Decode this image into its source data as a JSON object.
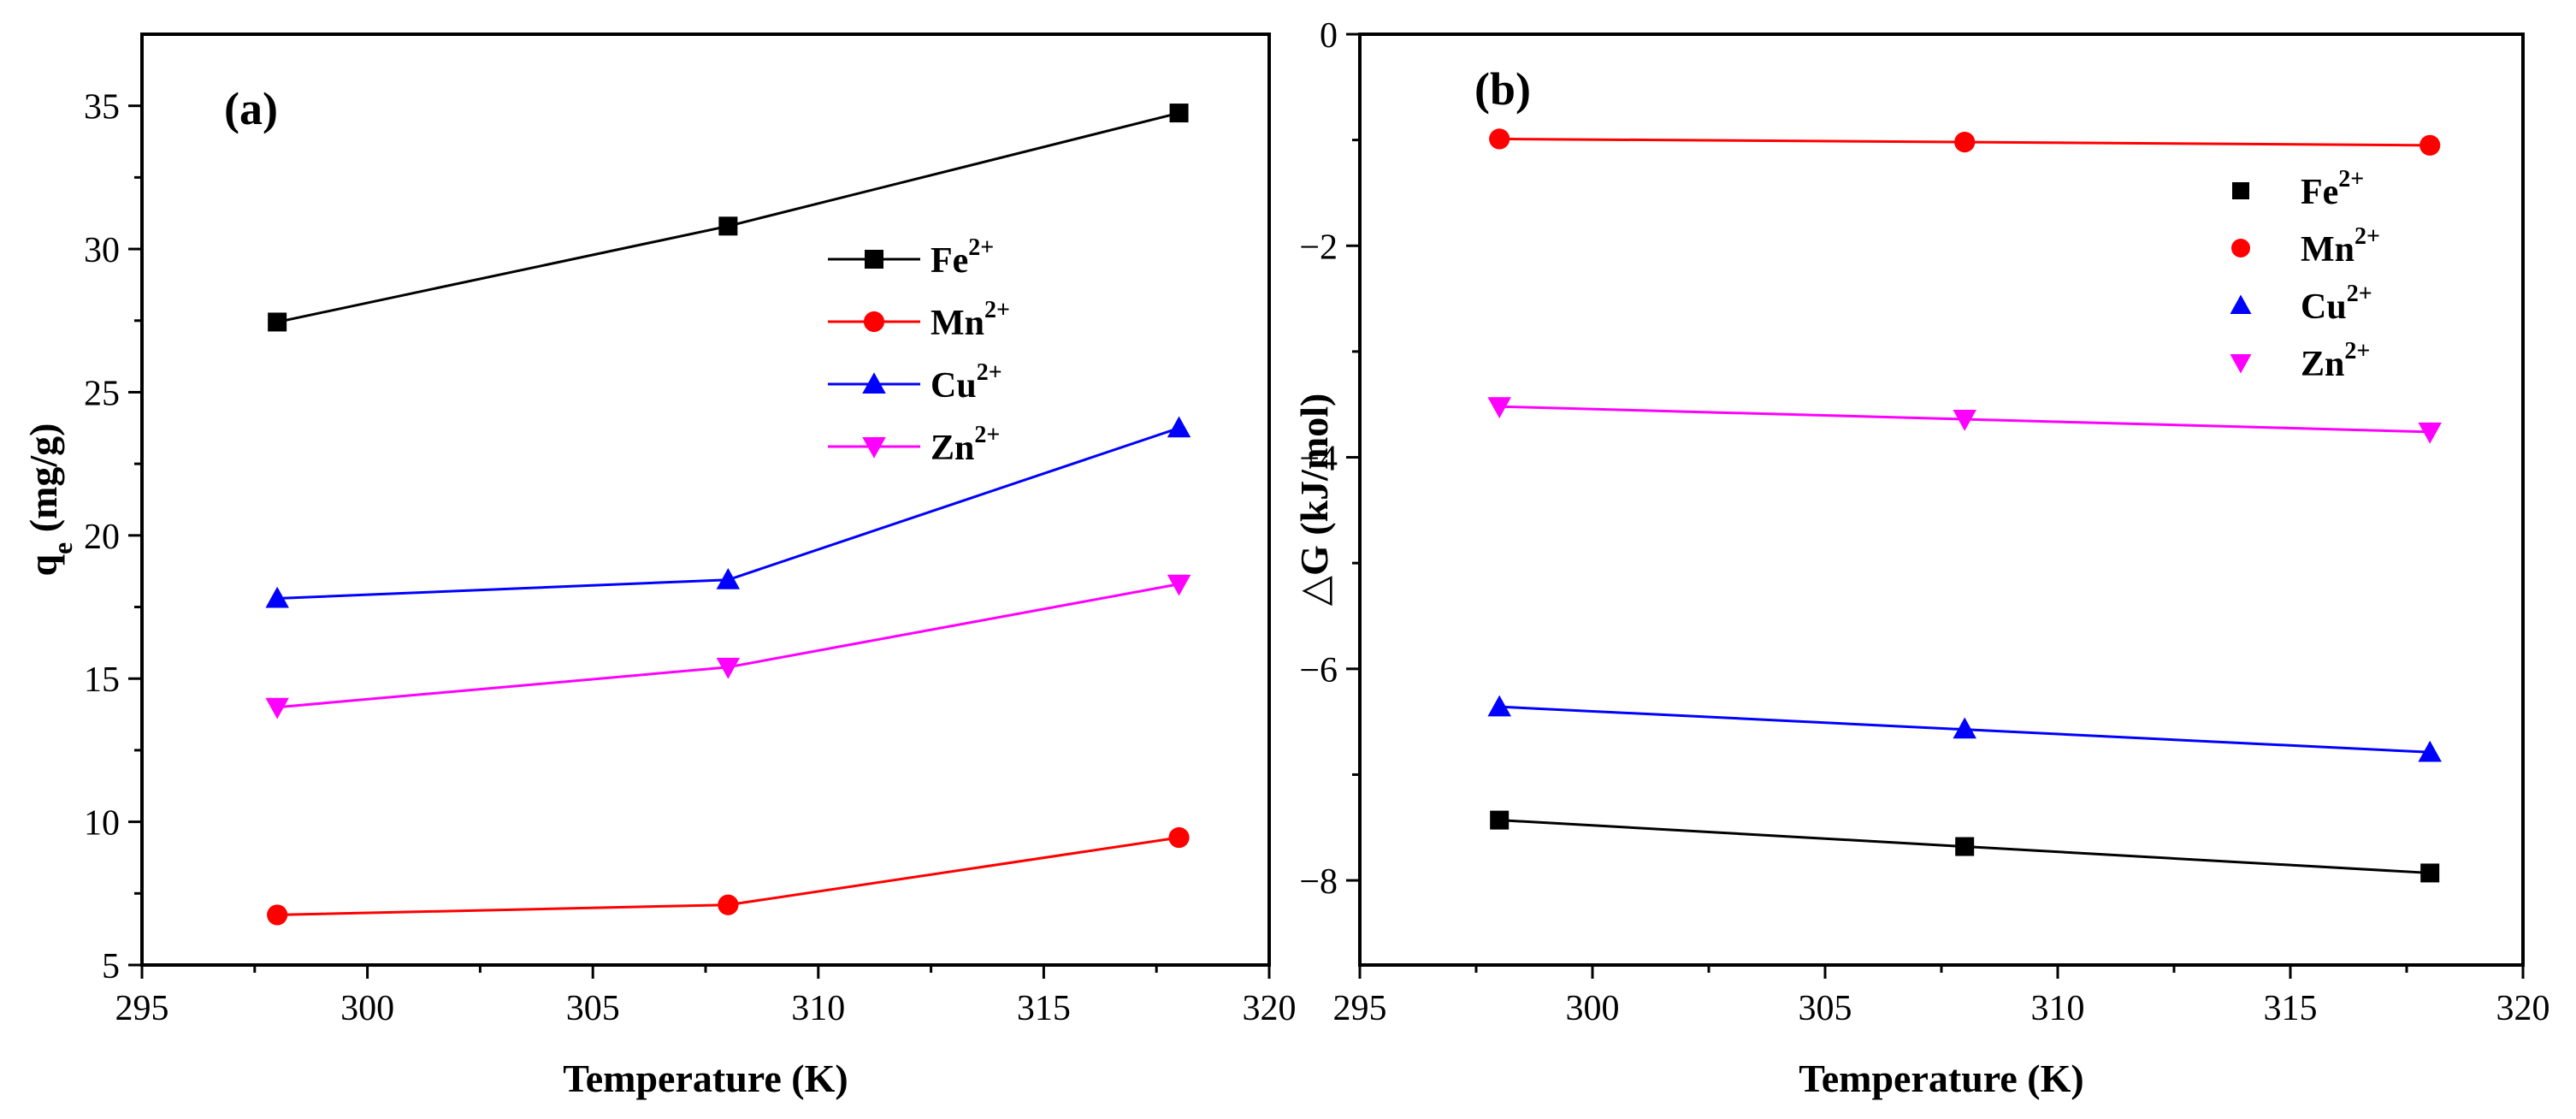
{
  "chart_data": [
    {
      "type": "line",
      "panel_label": "(a)",
      "xlabel": "Temperature (K)",
      "ylabel_main": "q",
      "ylabel_sub": "e",
      "ylabel_unit": " (mg/g)",
      "xlim": [
        295,
        320
      ],
      "ylim": [
        5,
        37.5
      ],
      "xticks": [
        295,
        300,
        305,
        310,
        315,
        320
      ],
      "yticks": [
        5,
        10,
        15,
        20,
        25,
        30,
        35
      ],
      "x": [
        298,
        308,
        318
      ],
      "legend_position": "center-right",
      "series": [
        {
          "name": "Fe",
          "sup": "2+",
          "color": "#000000",
          "marker": "square",
          "values": [
            27.45,
            30.8,
            34.75
          ]
        },
        {
          "name": "Mn",
          "sup": "2+",
          "color": "#ff0000",
          "marker": "circle",
          "values": [
            6.75,
            7.1,
            9.45
          ]
        },
        {
          "name": "Cu",
          "sup": "2+",
          "color": "#0000ff",
          "marker": "triangle-up",
          "values": [
            17.8,
            18.45,
            23.75
          ]
        },
        {
          "name": "Zn",
          "sup": "2+",
          "color": "#ff00ff",
          "marker": "triangle-down",
          "values": [
            14.0,
            15.4,
            18.3
          ]
        }
      ]
    },
    {
      "type": "scatter",
      "panel_label": "(b)",
      "xlabel": "Temperature (K)",
      "ylabel": "△G (kJ/mol)",
      "xlim": [
        295,
        320
      ],
      "ylim": [
        -8.8,
        0
      ],
      "xticks": [
        295,
        300,
        305,
        310,
        315,
        320
      ],
      "yticks": [
        0,
        -2,
        -4,
        -6,
        -8
      ],
      "ytick_labels": [
        "0",
        "−2",
        "−4",
        "−6",
        "−8"
      ],
      "x": [
        298,
        308,
        318
      ],
      "fit_lines": true,
      "legend_position": "top-right",
      "series": [
        {
          "name": "Fe",
          "sup": "2+",
          "color": "#000000",
          "marker": "square",
          "values": [
            -7.43,
            -7.68,
            -7.93
          ]
        },
        {
          "name": "Mn",
          "sup": "2+",
          "color": "#ff0000",
          "marker": "circle",
          "values": [
            -0.99,
            -1.02,
            -1.05
          ]
        },
        {
          "name": "Cu",
          "sup": "2+",
          "color": "#0000ff",
          "marker": "triangle-up",
          "values": [
            -6.36,
            -6.57,
            -6.79
          ]
        },
        {
          "name": "Zn",
          "sup": "2+",
          "color": "#ff00ff",
          "marker": "triangle-down",
          "values": [
            -3.52,
            -3.64,
            -3.76
          ]
        }
      ]
    }
  ]
}
